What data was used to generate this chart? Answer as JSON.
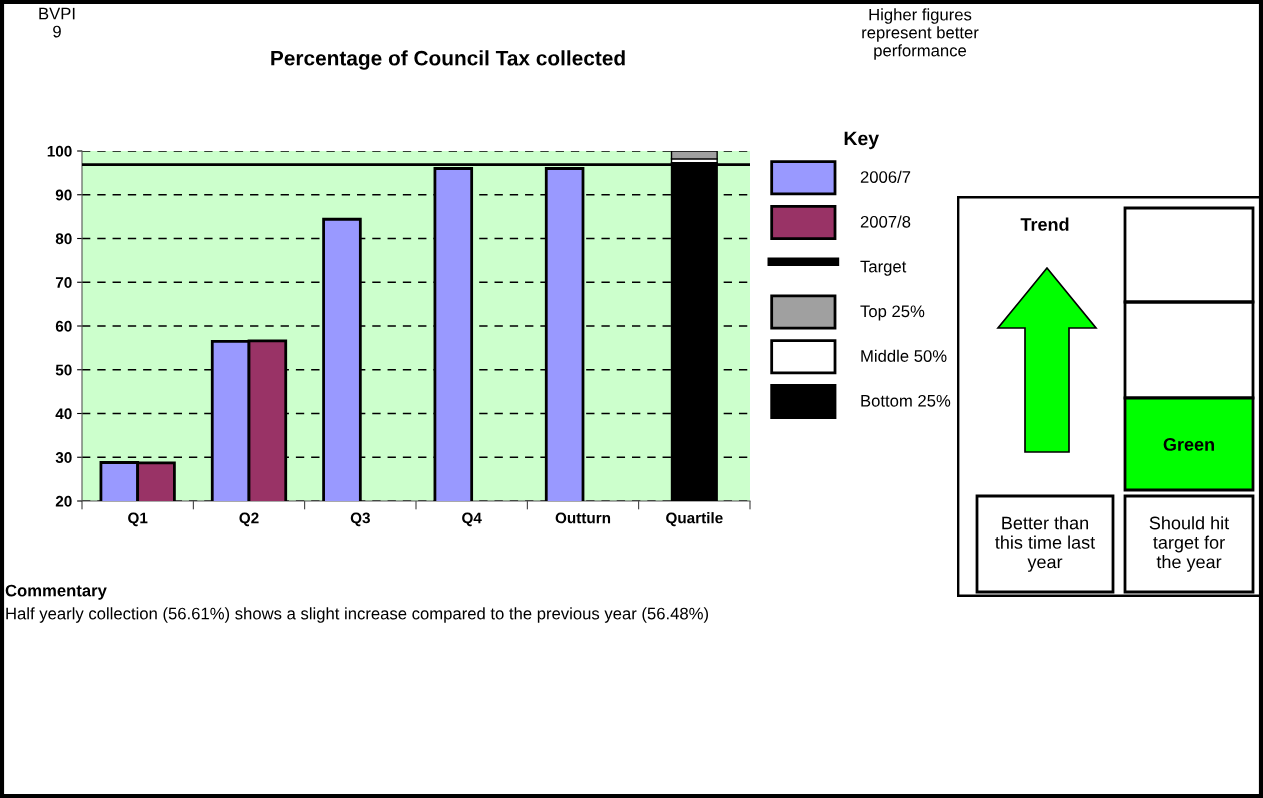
{
  "chart_data": [
    {
      "type": "bar",
      "title": "Percentage of Council Tax collected",
      "categories": [
        "Q1",
        "Q2",
        "Q3",
        "Q4",
        "Outturn",
        "Quartile"
      ],
      "series": [
        {
          "name": "2006/7",
          "color": "#9999ff",
          "values": [
            28.8,
            56.5,
            84.4,
            96.0,
            96.0,
            null
          ]
        },
        {
          "name": "2007/8",
          "color": "#993366",
          "values": [
            28.7,
            56.6,
            null,
            null,
            null,
            null
          ]
        },
        {
          "name": "Bottom 25%",
          "color": "#000000",
          "values": [
            null,
            null,
            null,
            null,
            null,
            97.3
          ]
        },
        {
          "name": "Middle 50%",
          "color": "#ffffff",
          "values": [
            null,
            null,
            null,
            null,
            null,
            0.9
          ],
          "base": [
            null,
            null,
            null,
            null,
            null,
            97.3
          ]
        },
        {
          "name": "Top 25%",
          "color": "#a0a0a0",
          "values": [
            null,
            null,
            null,
            null,
            null,
            1.8
          ],
          "base": [
            null,
            null,
            null,
            null,
            null,
            98.2
          ]
        }
      ],
      "ylim": [
        20,
        100
      ],
      "yticks": [
        20,
        30,
        40,
        50,
        60,
        70,
        80,
        90,
        100
      ],
      "grid": "y",
      "legend": "right",
      "legend_title": "Key",
      "ref_lines": [
        {
          "axis": "y",
          "value": 96.9,
          "label": "Target",
          "color": "#000000",
          "line_style": "solid"
        }
      ],
      "annotations": [
        "BVPI\n9",
        "Higher figures\nrepresent better\nperformance",
        "Commentary",
        "Half yearly collection (56.61%) shows a slight increase compared to the previous year (56.48%)"
      ]
    },
    {
      "type": "other",
      "annotations": [
        "Trend",
        "Green",
        "Better than\nthis time last\nyear",
        "Should hit\ntarget for\nthe year"
      ]
    }
  ]
}
